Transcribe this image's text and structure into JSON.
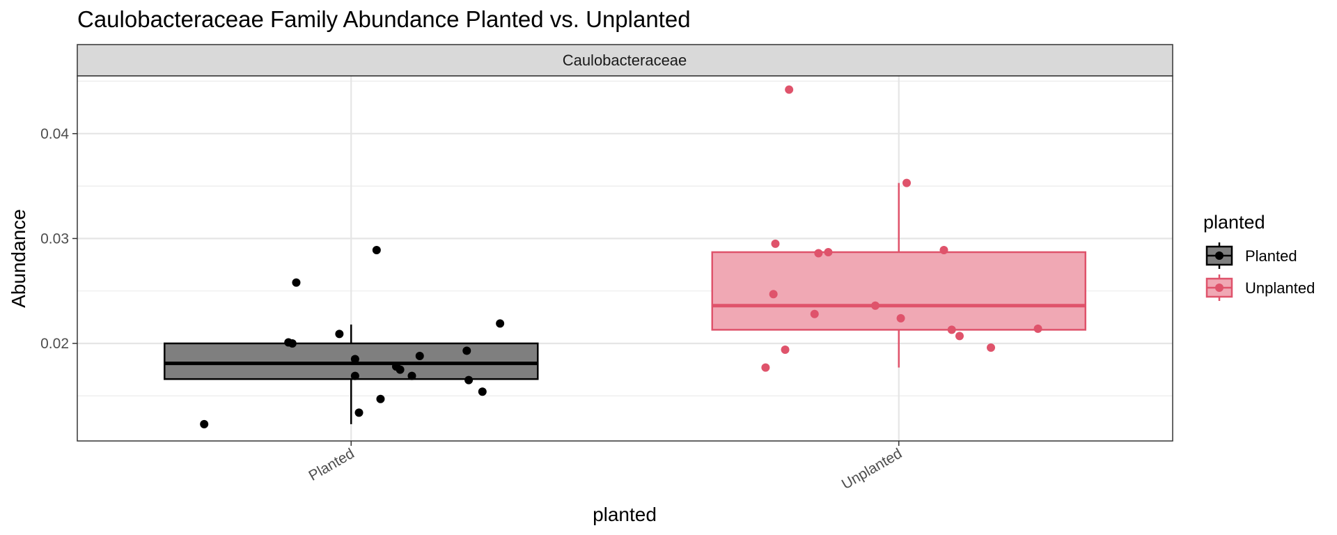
{
  "chart_data": {
    "type": "box",
    "title": "Caulobacteraceae Family Abundance Planted vs. Unplanted",
    "facet_label": "Caulobacteraceae",
    "xlabel": "planted",
    "ylabel": "Abundance",
    "categories": [
      "Planted",
      "Unplanted"
    ],
    "ylim": [
      0.0107,
      0.0455
    ],
    "y_ticks": [
      {
        "value": 0.02,
        "label": "0.02"
      },
      {
        "value": 0.03,
        "label": "0.03"
      },
      {
        "value": 0.04,
        "label": "0.04"
      }
    ],
    "grid": true,
    "legend": {
      "title": "planted",
      "position": "right",
      "entries": [
        "Planted",
        "Unplanted"
      ]
    },
    "series": [
      {
        "name": "Planted",
        "color": "#000000",
        "fill": "#7f7f7f",
        "box": {
          "whisker_low": 0.0123,
          "q1": 0.0166,
          "median": 0.0181,
          "q3": 0.02,
          "whisker_high": 0.0218
        },
        "points": [
          {
            "x": -0.75,
            "y": 0.0123
          },
          {
            "x": -0.32,
            "y": 0.0201
          },
          {
            "x": -0.3,
            "y": 0.02
          },
          {
            "x": -0.28,
            "y": 0.0258
          },
          {
            "x": -0.06,
            "y": 0.0209
          },
          {
            "x": 0.02,
            "y": 0.0185
          },
          {
            "x": 0.02,
            "y": 0.0169
          },
          {
            "x": 0.04,
            "y": 0.0134
          },
          {
            "x": 0.13,
            "y": 0.0289
          },
          {
            "x": 0.15,
            "y": 0.0147
          },
          {
            "x": 0.23,
            "y": 0.0178
          },
          {
            "x": 0.25,
            "y": 0.0175
          },
          {
            "x": 0.31,
            "y": 0.0169
          },
          {
            "x": 0.35,
            "y": 0.0188
          },
          {
            "x": 0.59,
            "y": 0.0193
          },
          {
            "x": 0.6,
            "y": 0.0165
          },
          {
            "x": 0.67,
            "y": 0.0154
          },
          {
            "x": 0.76,
            "y": 0.0219
          }
        ]
      },
      {
        "name": "Unplanted",
        "color": "#df536b",
        "fill": "#f0a8b4",
        "box": {
          "whisker_low": 0.0177,
          "q1": 0.0213,
          "median": 0.0236,
          "q3": 0.0287,
          "whisker_high": 0.0353
        },
        "points": [
          {
            "x": -0.68,
            "y": 0.0177
          },
          {
            "x": -0.64,
            "y": 0.0247
          },
          {
            "x": -0.63,
            "y": 0.0295
          },
          {
            "x": -0.58,
            "y": 0.0194
          },
          {
            "x": -0.56,
            "y": 0.0442
          },
          {
            "x": -0.43,
            "y": 0.0228
          },
          {
            "x": -0.41,
            "y": 0.0286
          },
          {
            "x": -0.36,
            "y": 0.0287
          },
          {
            "x": -0.12,
            "y": 0.0236
          },
          {
            "x": 0.01,
            "y": 0.0224
          },
          {
            "x": 0.04,
            "y": 0.0353
          },
          {
            "x": 0.23,
            "y": 0.0289
          },
          {
            "x": 0.27,
            "y": 0.0213
          },
          {
            "x": 0.31,
            "y": 0.0207
          },
          {
            "x": 0.47,
            "y": 0.0196
          },
          {
            "x": 0.71,
            "y": 0.0214
          }
        ]
      }
    ]
  }
}
